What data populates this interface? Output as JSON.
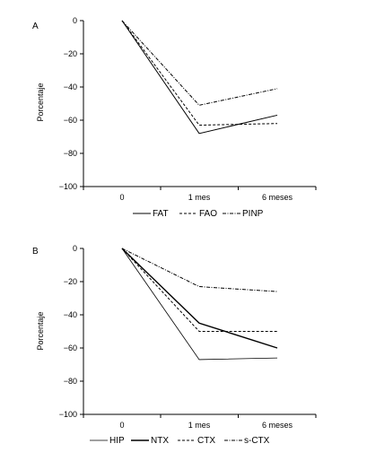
{
  "chart_data": [
    {
      "type": "line",
      "panel_label": "A",
      "ylabel": "Porcentaje",
      "xlabel": "",
      "categories": [
        "0",
        "1 mes",
        "6 meses"
      ],
      "ylim": [
        -100,
        0
      ],
      "yticks": [
        0,
        -20,
        -40,
        -60,
        -80,
        -100
      ],
      "ytick_labels": [
        "0",
        "−20",
        "−40",
        "−60",
        "−80",
        "−100"
      ],
      "grid": false,
      "legend_position": "bottom",
      "series": [
        {
          "name": "FAT",
          "style": "solid",
          "values": [
            0,
            -68,
            -57
          ]
        },
        {
          "name": "FAO",
          "style": "dashed",
          "values": [
            0,
            -63,
            -62
          ]
        },
        {
          "name": "PINP",
          "style": "dashdot",
          "values": [
            0,
            -51,
            -41
          ]
        }
      ]
    },
    {
      "type": "line",
      "panel_label": "B",
      "ylabel": "Porcentaje",
      "xlabel": "",
      "categories": [
        "0",
        "1 mes",
        "6 meses"
      ],
      "ylim": [
        -100,
        0
      ],
      "yticks": [
        0,
        -20,
        -40,
        -60,
        -80,
        -100
      ],
      "ytick_labels": [
        "0",
        "−20",
        "−40",
        "−60",
        "−80",
        "−100"
      ],
      "grid": false,
      "legend_position": "bottom",
      "series": [
        {
          "name": "HIP",
          "style": "thin",
          "values": [
            0,
            -67,
            -66
          ]
        },
        {
          "name": "NTX",
          "style": "thick",
          "values": [
            0,
            -45,
            -60
          ]
        },
        {
          "name": "CTX",
          "style": "dashed",
          "values": [
            0,
            -50,
            -50
          ]
        },
        {
          "name": "s-CTX",
          "style": "dashdot",
          "values": [
            0,
            -23,
            -26
          ]
        }
      ]
    }
  ]
}
